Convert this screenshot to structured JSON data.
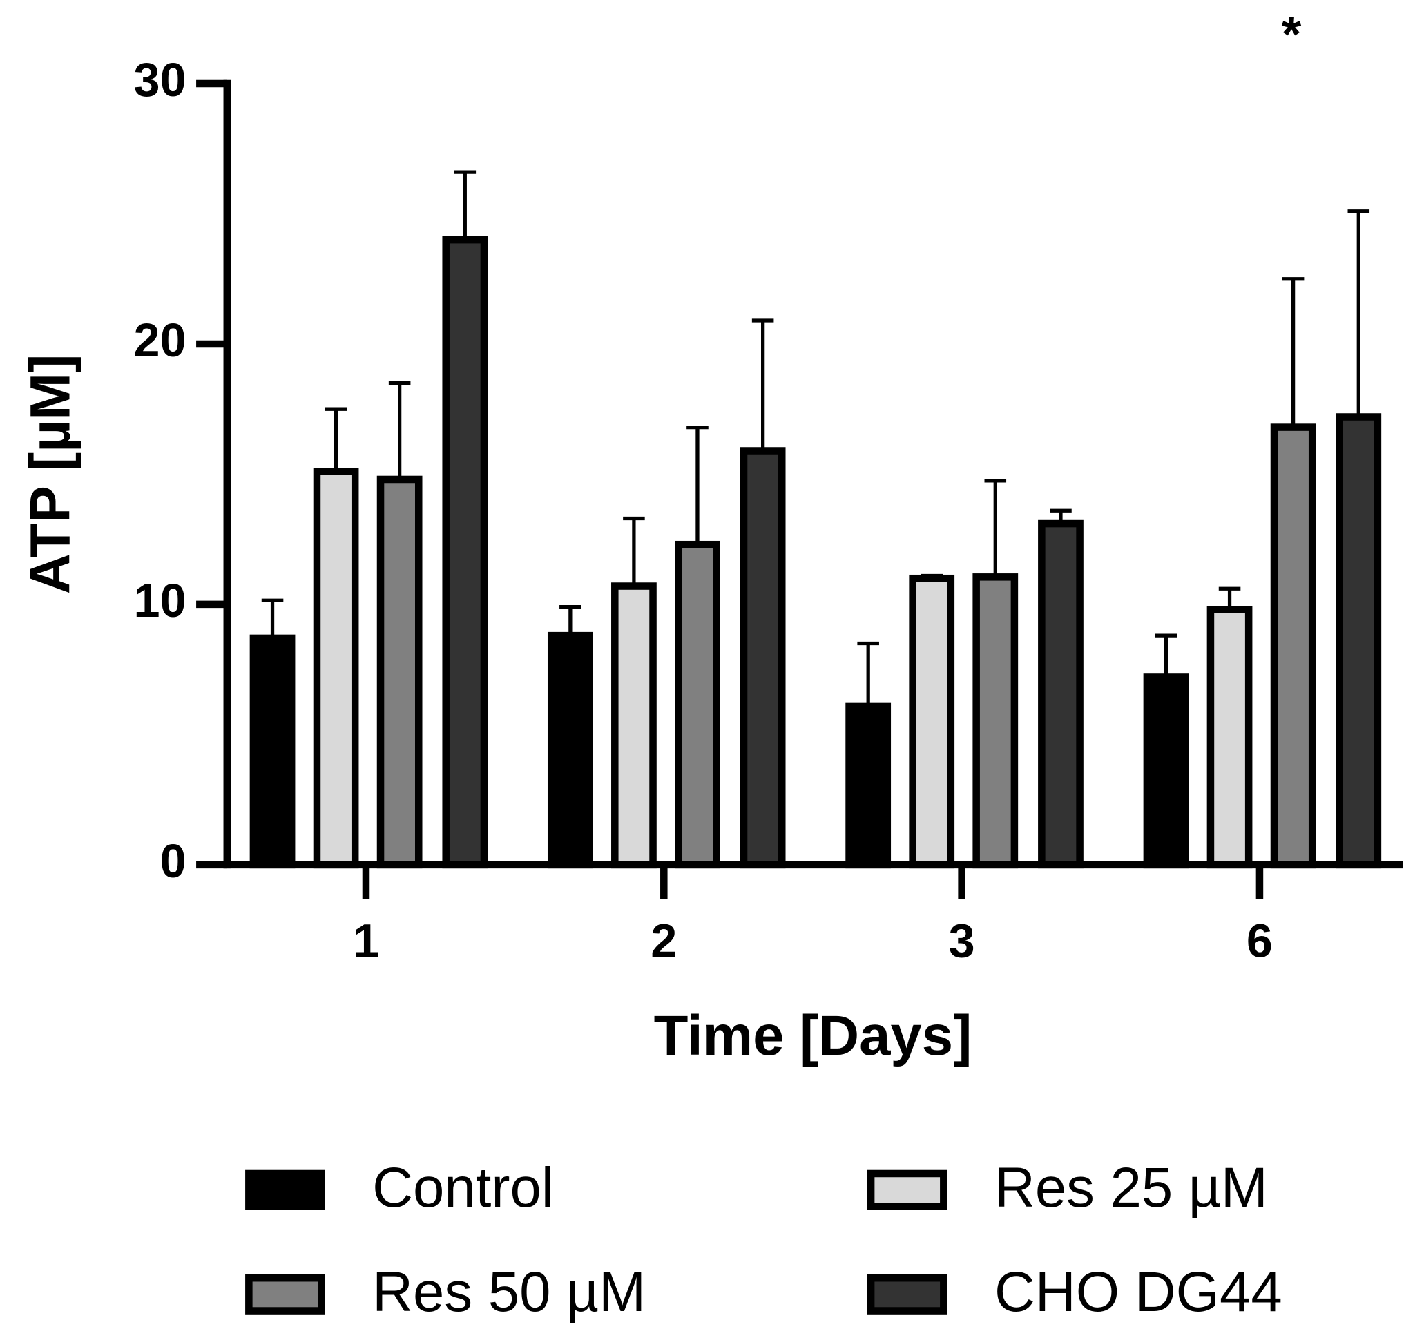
{
  "chart_data": {
    "type": "bar",
    "x_label": "Time [Days]",
    "y_label": "ATP [µM]",
    "categories": [
      "1",
      "2",
      "3",
      "6"
    ],
    "series": [
      {
        "name": "Control",
        "color": "#000000",
        "values": [
          8.7,
          8.8,
          6.1,
          7.2
        ],
        "errors": [
          1.45,
          1.1,
          2.4,
          1.6
        ]
      },
      {
        "name": "Res 25 µM",
        "color": "#d9d9d9",
        "values": [
          15.1,
          10.7,
          11.0,
          9.8
        ],
        "errors": [
          2.4,
          2.6,
          0.1,
          0.8
        ]
      },
      {
        "name": "Res 50 µM",
        "color": "#808080",
        "values": [
          14.8,
          12.3,
          11.05,
          16.8
        ],
        "errors": [
          3.7,
          4.5,
          3.7,
          5.7
        ]
      },
      {
        "name": "CHO DG44",
        "color": "#333333",
        "values": [
          24.0,
          15.9,
          13.1,
          17.2
        ],
        "errors": [
          2.6,
          5.0,
          0.5,
          7.9
        ]
      }
    ],
    "annotation": "*",
    "ylim": [
      0,
      30
    ],
    "yticks": [
      0,
      10,
      20,
      30
    ],
    "grid": false
  }
}
